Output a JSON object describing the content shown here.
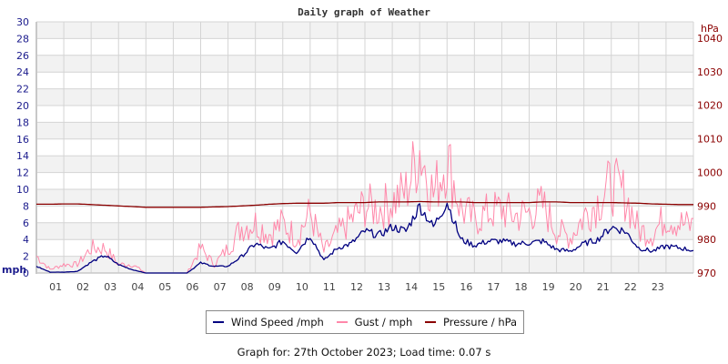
{
  "chart_data": {
    "type": "line",
    "title": "Daily graph of Weather",
    "xlabel": "",
    "ylabel_left": "mph",
    "ylabel_right": "hPa",
    "ylim_left": [
      0,
      30
    ],
    "ylim_right": [
      970,
      1040
    ],
    "yticks_left": [
      0,
      2,
      4,
      6,
      8,
      10,
      12,
      14,
      16,
      18,
      20,
      22,
      24,
      26,
      28,
      30
    ],
    "yticks_right": [
      970,
      980,
      990,
      1000,
      1010,
      1020,
      1030,
      1040
    ],
    "x_tick_labels": [
      "01",
      "02",
      "03",
      "04",
      "05",
      "06",
      "07",
      "08",
      "09",
      "10",
      "11",
      "12",
      "13",
      "14",
      "15",
      "16",
      "17",
      "18",
      "19",
      "20",
      "21",
      "22",
      "23"
    ],
    "x_range_hours": [
      0,
      24
    ],
    "grid": true,
    "legend_position": "bottom",
    "x": [
      0,
      0.5,
      1,
      1.5,
      2,
      2.5,
      3,
      3.5,
      4,
      4.5,
      5,
      5.5,
      6,
      6.5,
      7,
      7.5,
      8,
      8.5,
      9,
      9.5,
      10,
      10.5,
      11,
      11.5,
      12,
      12.5,
      13,
      13.5,
      14,
      14.5,
      15,
      15.5,
      16,
      16.5,
      17,
      17.5,
      18,
      18.5,
      19,
      19.5,
      20,
      20.5,
      21,
      21.5,
      22,
      22.5,
      23,
      23.5,
      24
    ],
    "series": [
      {
        "name": "Wind Speed /mph",
        "color": "#000080",
        "axis": "left",
        "values": [
          0.8,
          0.1,
          0.1,
          0.2,
          1.3,
          2.1,
          1.0,
          0.4,
          0.0,
          0.0,
          0.0,
          0.0,
          1.2,
          0.8,
          0.8,
          2.0,
          3.5,
          2.8,
          3.8,
          2.5,
          4.5,
          1.5,
          3.0,
          3.5,
          5.0,
          4.5,
          5.5,
          5.0,
          8.0,
          5.5,
          8.5,
          4.0,
          3.3,
          3.8,
          3.8,
          3.5,
          3.6,
          3.8,
          2.8,
          2.6,
          3.5,
          4.0,
          5.5,
          5.0,
          3.0,
          2.6,
          3.2,
          3.0,
          2.7
        ]
      },
      {
        "name": "Gust / mph",
        "color": "#ff88aa",
        "axis": "left",
        "values": [
          2.4,
          0.5,
          1.2,
          1.2,
          3.5,
          3.5,
          1.2,
          1.2,
          0.0,
          0.0,
          0.0,
          0.0,
          3.5,
          1.2,
          3.5,
          6.5,
          7.0,
          5.5,
          7.0,
          5.0,
          8.5,
          3.0,
          5.5,
          7.5,
          9.5,
          9.0,
          10.0,
          11.5,
          17.4,
          11.0,
          16.3,
          9.0,
          7.5,
          8.5,
          9.0,
          8.0,
          8.5,
          9.5,
          6.0,
          5.0,
          8.0,
          10.0,
          12.5,
          11.0,
          6.0,
          5.5,
          8.0,
          7.0,
          6.5
        ]
      },
      {
        "name": "Pressure / hPa",
        "color": "#8b0000",
        "axis": "right",
        "values": [
          990.5,
          990.5,
          990.6,
          990.6,
          990.4,
          990.2,
          990.0,
          989.8,
          989.6,
          989.6,
          989.6,
          989.6,
          989.6,
          989.7,
          989.8,
          990.0,
          990.2,
          990.5,
          990.7,
          990.8,
          990.8,
          990.8,
          991.0,
          991.0,
          991.0,
          991.2,
          991.2,
          991.2,
          991.3,
          991.2,
          991.2,
          991.2,
          991.0,
          991.0,
          991.0,
          991.0,
          991.0,
          991.2,
          991.2,
          991.0,
          991.0,
          991.0,
          991.0,
          990.9,
          990.8,
          990.6,
          990.5,
          990.4,
          990.4
        ]
      }
    ]
  },
  "legend": {
    "items": [
      {
        "label": "Wind Speed /mph",
        "color": "#000080"
      },
      {
        "label": "Gust / mph",
        "color": "#ff88aa"
      },
      {
        "label": "Pressure / hPa",
        "color": "#8b0000"
      }
    ]
  },
  "footer": {
    "text": "Graph for: 27th October 2023; Load time: 0.07 s"
  }
}
